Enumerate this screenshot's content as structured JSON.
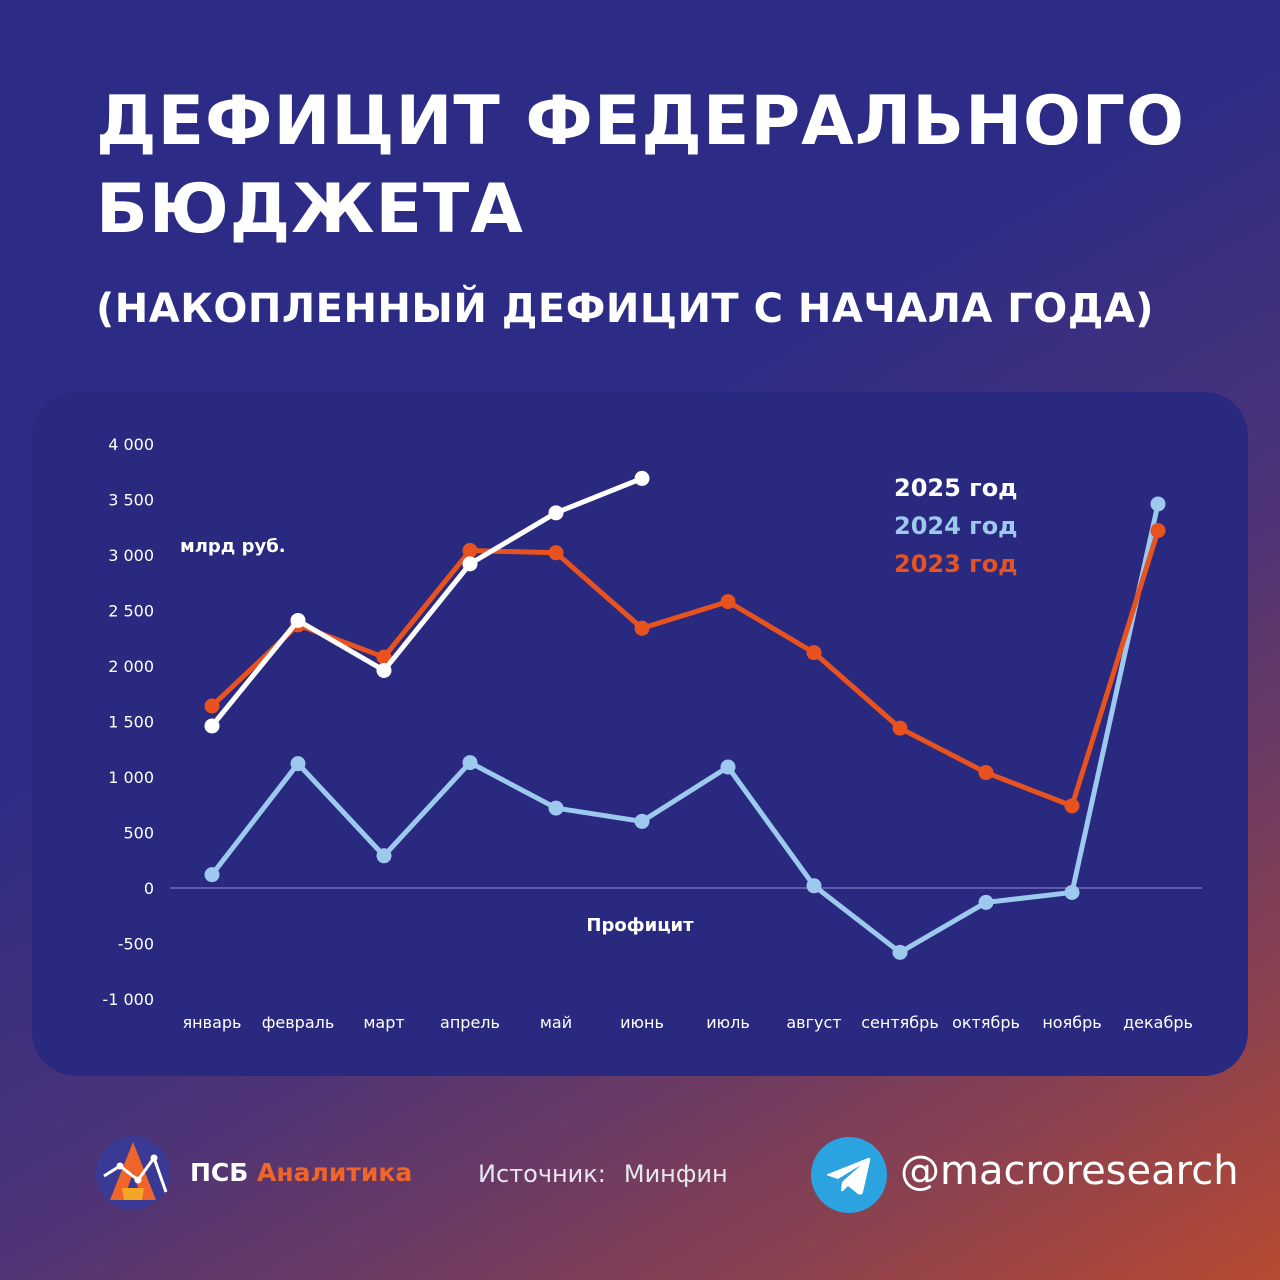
{
  "header": {
    "title_line1": "ДЕФИЦИТ ФЕДЕРАЛЬНОГО",
    "title_line2": "БЮДЖЕТА",
    "subtitle": "(НАКОПЛЕННЫЙ ДЕФИЦИТ С НАЧАЛА ГОДА)"
  },
  "colors": {
    "series_2025": "#ffffff",
    "series_2024": "#9dc9ef",
    "series_2023": "#e8521e",
    "panel": "#29297f",
    "zero_line": "#7a7ac0"
  },
  "chart_data": {
    "type": "line",
    "unit_label": "млрд руб.",
    "annotation": "Профицит",
    "categories": [
      "январь",
      "февраль",
      "март",
      "апрель",
      "май",
      "июнь",
      "июль",
      "август",
      "сентябрь",
      "октябрь",
      "ноябрь",
      "декабрь"
    ],
    "ylim": [
      -1000,
      4000
    ],
    "yticks": [
      4000,
      3500,
      3000,
      2500,
      2000,
      1500,
      1000,
      500,
      0,
      -500,
      -1000
    ],
    "ytick_labels": [
      "4 000",
      "3 500",
      "3 000",
      "2 500",
      "2 000",
      "1 500",
      "1 000",
      "500",
      "0",
      "-500",
      "-1 000"
    ],
    "legend_position": "top-right",
    "series": [
      {
        "name": "2023 год",
        "color": "#e8521e",
        "values": [
          1640,
          2370,
          2080,
          3040,
          3020,
          2340,
          2580,
          2120,
          1440,
          1040,
          740,
          3220
        ]
      },
      {
        "name": "2024 год",
        "color": "#9dc9ef",
        "values": [
          120,
          1120,
          290,
          1130,
          720,
          600,
          1090,
          20,
          -580,
          -130,
          -40,
          3460
        ]
      },
      {
        "name": "2025 год",
        "color": "#ffffff",
        "values": [
          1460,
          2410,
          1960,
          2920,
          3380,
          3690,
          null,
          null,
          null,
          null,
          null,
          null
        ]
      }
    ],
    "legend": [
      "2025 год",
      "2024 год",
      "2023 год"
    ]
  },
  "footer": {
    "brand_part1": "ПСБ ",
    "brand_part2": "Аналитика",
    "source_label": "Источник:",
    "source_value": "Минфин",
    "telegram_handle": "@macroresearch"
  }
}
